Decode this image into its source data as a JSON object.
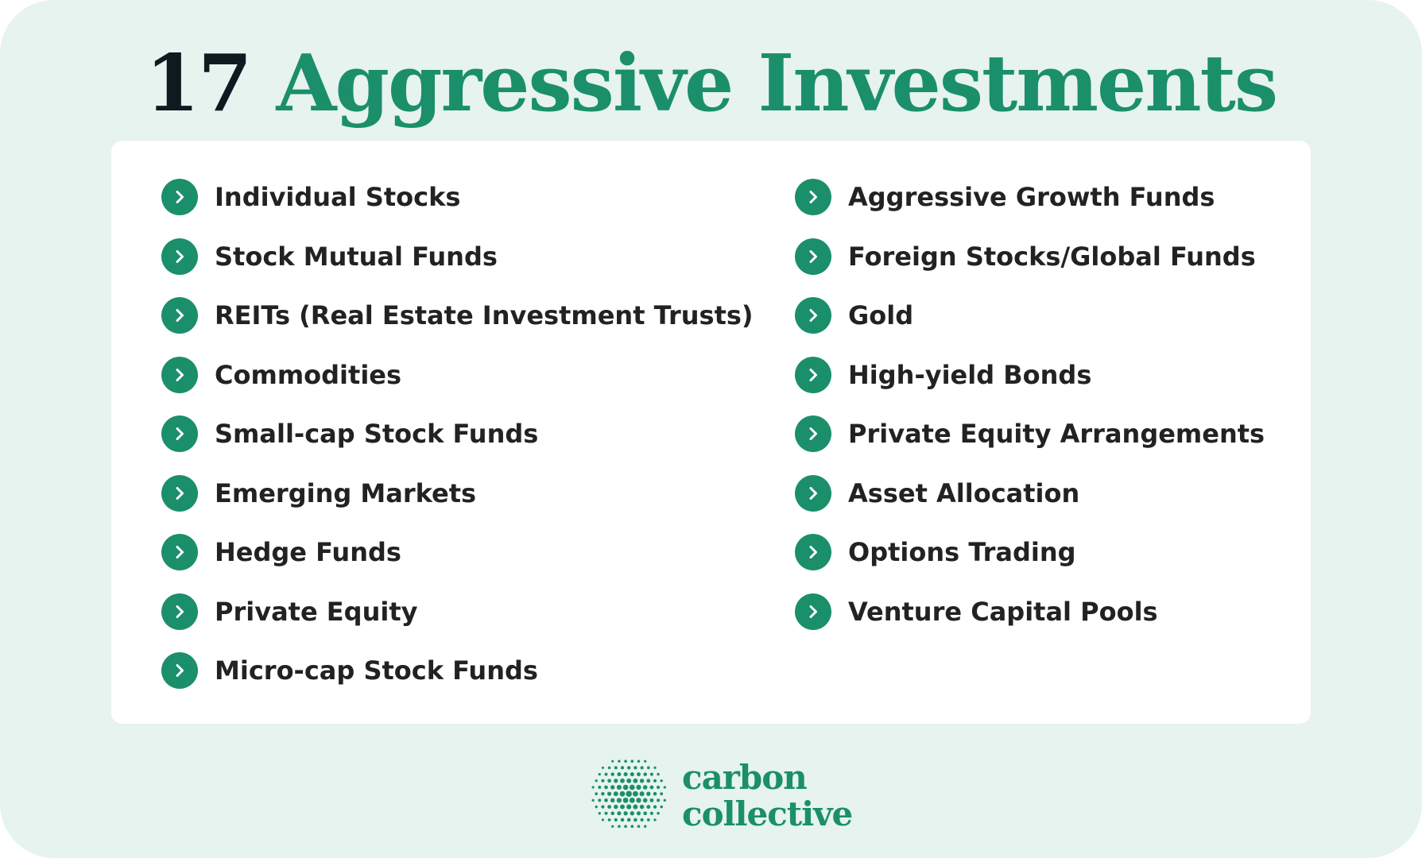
{
  "title": {
    "number": "17",
    "text": "Aggressive Investments"
  },
  "colors": {
    "background": "#e6f3ef",
    "accent": "#1b8f6a",
    "dark_text": "#0f1a20",
    "item_text": "#222222"
  },
  "list": {
    "bullet_icon": "chevron-right-circle-icon",
    "left": [
      "Individual Stocks",
      "Stock Mutual Funds",
      "REITs (Real Estate Investment Trusts)",
      "Commodities",
      "Small-cap Stock Funds",
      "Emerging Markets",
      "Hedge Funds",
      "Private Equity",
      "Micro-cap Stock Funds"
    ],
    "right": [
      "Aggressive Growth Funds",
      "Foreign Stocks/Global Funds",
      "Gold",
      "High-yield Bonds",
      "Private Equity Arrangements",
      "Asset Allocation",
      "Options Trading",
      "Venture Capital Pools"
    ]
  },
  "brand": {
    "line1": "carbon",
    "line2": "collective",
    "logo_icon": "dotted-sphere-logo-icon"
  }
}
